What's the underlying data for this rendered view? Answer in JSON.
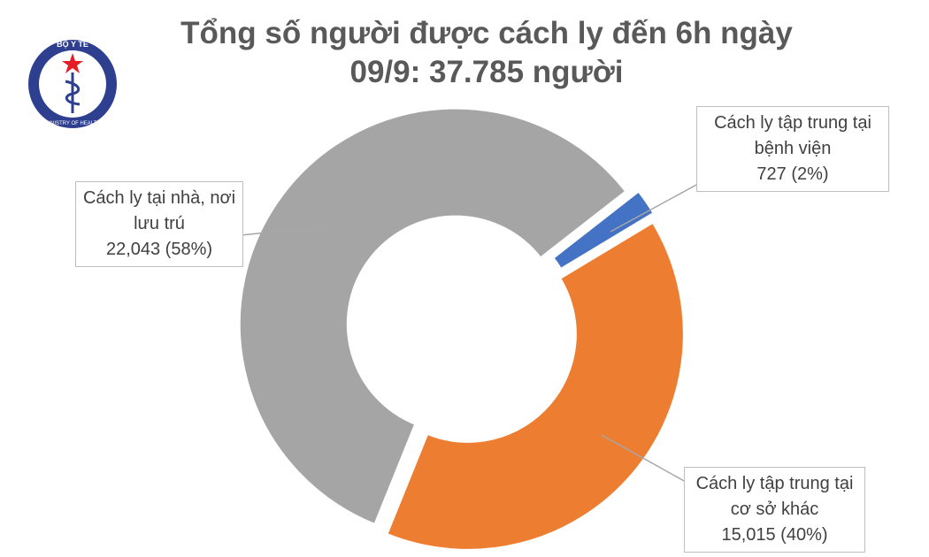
{
  "logo": {
    "top": "BỘ Y TẾ",
    "bottom": "MINISTRY OF HEALTH"
  },
  "chart_data": {
    "type": "donut",
    "title": [
      "Tổng số người được cách ly đến 6h ngày",
      "09/9: 37.785 người"
    ],
    "categories": [
      "Cách ly tập trung tại bệnh viện",
      "Cách ly tập trung tại cơ sở khác",
      "Cách ly tại nhà, nơi lưu trú"
    ],
    "values": [
      727,
      15015,
      22043
    ],
    "value_labels": [
      "727 (2%)",
      "15,015 (40%)",
      "22,043 (58%)"
    ],
    "colors": [
      "#4472c4",
      "#ed7d31",
      "#a5a5a5"
    ]
  }
}
